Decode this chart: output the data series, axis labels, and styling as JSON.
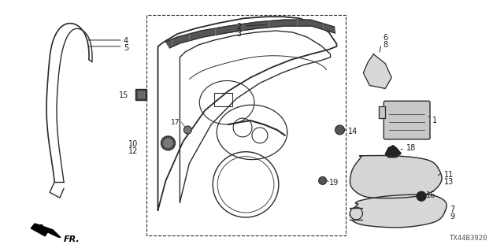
{
  "diagram_id": "TX44B3920",
  "background_color": "#ffffff",
  "line_color": "#2a2a2a",
  "text_color": "#1a1a1a",
  "figsize": [
    6.4,
    3.2
  ],
  "dpi": 100
}
